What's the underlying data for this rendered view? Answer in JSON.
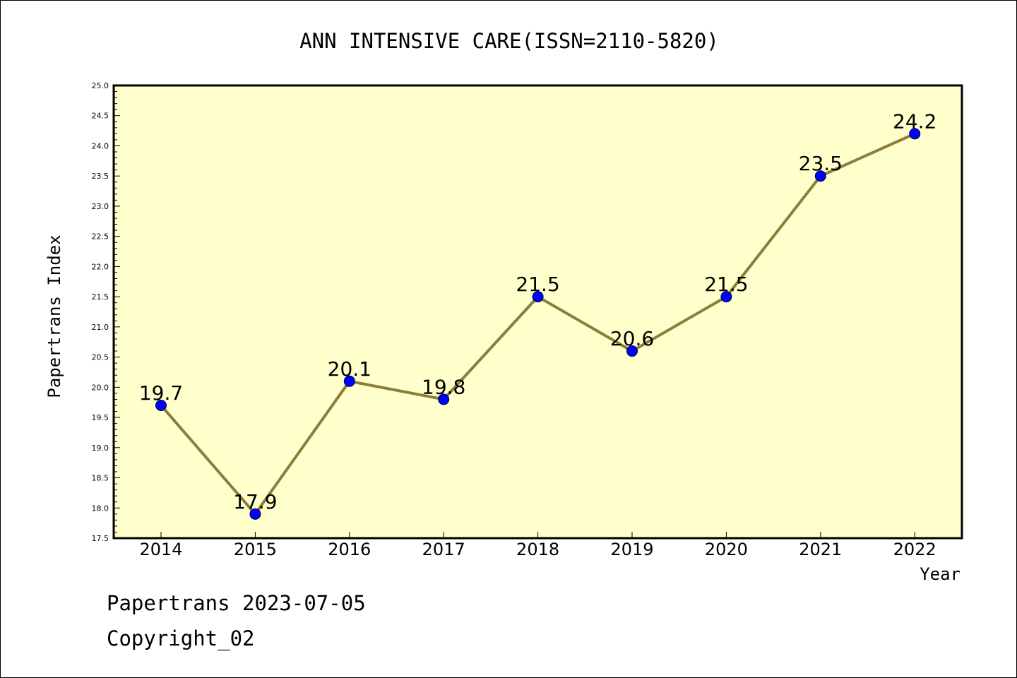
{
  "chart_data": {
    "type": "line",
    "title": "ANN INTENSIVE CARE(ISSN=2110-5820)",
    "xlabel": "Year",
    "ylabel": "Papertrans Index",
    "categories": [
      "2014",
      "2015",
      "2016",
      "2017",
      "2018",
      "2019",
      "2020",
      "2021",
      "2022"
    ],
    "series": [
      {
        "values": [
          19.7,
          17.9,
          20.1,
          19.8,
          21.5,
          20.6,
          21.5,
          23.5,
          24.2
        ]
      }
    ],
    "data_labels": [
      "19.7",
      "17.9",
      "20.1",
      "19.8",
      "21.5",
      "20.6",
      "21.5",
      "23.5",
      "24.2"
    ],
    "ylim": [
      17.5,
      25.0
    ],
    "yticks": [
      "17.5",
      "18.0",
      "18.5",
      "19.0",
      "19.5",
      "20.0",
      "20.5",
      "21.0",
      "21.5",
      "22.0",
      "22.5",
      "23.0",
      "23.5",
      "24.0",
      "24.5",
      "25.0"
    ],
    "grid": false,
    "legend": "none",
    "colors": {
      "plot_background": "#ffffcc",
      "line": "#8b7d3a",
      "marker": "#0000ff"
    }
  },
  "footer": {
    "source": "Papertrans 2023-07-05",
    "copyright": "Copyright_02"
  }
}
